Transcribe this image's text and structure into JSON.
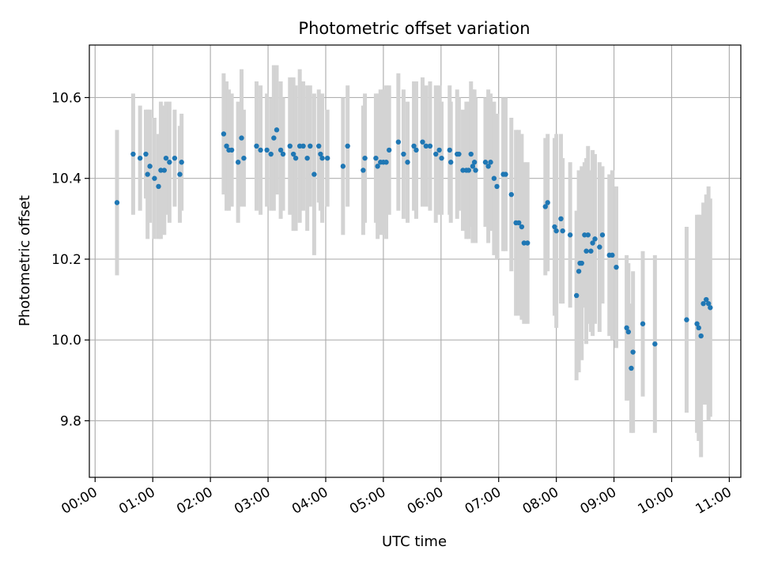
{
  "chart_data": {
    "type": "scatter",
    "title": "Photometric offset variation",
    "xlabel": "UTC time",
    "ylabel": "Photometric offset",
    "grid": true,
    "xlim_hours": [
      -0.1,
      11.2
    ],
    "ylim": [
      9.66,
      10.73
    ],
    "x_ticks": [
      {
        "v": 0,
        "label": "00:00"
      },
      {
        "v": 1,
        "label": "01:00"
      },
      {
        "v": 2,
        "label": "02:00"
      },
      {
        "v": 3,
        "label": "03:00"
      },
      {
        "v": 4,
        "label": "04:00"
      },
      {
        "v": 5,
        "label": "05:00"
      },
      {
        "v": 6,
        "label": "06:00"
      },
      {
        "v": 7,
        "label": "07:00"
      },
      {
        "v": 8,
        "label": "08:00"
      },
      {
        "v": 9,
        "label": "09:00"
      },
      {
        "v": 10,
        "label": "10:00"
      },
      {
        "v": 11,
        "label": "11:00"
      }
    ],
    "y_ticks": [
      {
        "v": 9.8,
        "label": "9.8"
      },
      {
        "v": 10.0,
        "label": "10.0"
      },
      {
        "v": 10.2,
        "label": "10.2"
      },
      {
        "v": 10.4,
        "label": "10.4"
      },
      {
        "v": 10.6,
        "label": "10.6"
      }
    ],
    "series": [
      {
        "name": "offset",
        "points": [
          [
            0.38,
            10.34,
            0.18
          ],
          [
            0.66,
            10.46,
            0.15
          ],
          [
            0.78,
            10.45,
            0.13
          ],
          [
            0.88,
            10.46,
            0.11
          ],
          [
            0.91,
            10.41,
            0.16
          ],
          [
            0.95,
            10.43,
            0.14
          ],
          [
            1.03,
            10.4,
            0.15
          ],
          [
            1.1,
            10.38,
            0.13
          ],
          [
            1.14,
            10.42,
            0.17
          ],
          [
            1.2,
            10.42,
            0.16
          ],
          [
            1.23,
            10.45,
            0.14
          ],
          [
            1.29,
            10.44,
            0.15
          ],
          [
            1.38,
            10.45,
            0.12
          ],
          [
            1.47,
            10.41,
            0.12
          ],
          [
            1.5,
            10.44,
            0.12
          ],
          [
            2.23,
            10.51,
            0.15
          ],
          [
            2.28,
            10.48,
            0.16
          ],
          [
            2.32,
            10.47,
            0.15
          ],
          [
            2.37,
            10.47,
            0.14
          ],
          [
            2.48,
            10.44,
            0.15
          ],
          [
            2.54,
            10.5,
            0.17
          ],
          [
            2.58,
            10.45,
            0.12
          ],
          [
            2.8,
            10.48,
            0.16
          ],
          [
            2.87,
            10.47,
            0.16
          ],
          [
            2.98,
            10.47,
            0.14
          ],
          [
            3.05,
            10.46,
            0.14
          ],
          [
            3.1,
            10.5,
            0.18
          ],
          [
            3.15,
            10.52,
            0.16
          ],
          [
            3.22,
            10.47,
            0.17
          ],
          [
            3.26,
            10.46,
            0.14
          ],
          [
            3.38,
            10.48,
            0.17
          ],
          [
            3.44,
            10.46,
            0.19
          ],
          [
            3.48,
            10.45,
            0.18
          ],
          [
            3.55,
            10.48,
            0.19
          ],
          [
            3.61,
            10.48,
            0.16
          ],
          [
            3.68,
            10.45,
            0.18
          ],
          [
            3.73,
            10.48,
            0.15
          ],
          [
            3.8,
            10.41,
            0.2
          ],
          [
            3.88,
            10.48,
            0.14
          ],
          [
            3.91,
            10.46,
            0.14
          ],
          [
            3.94,
            10.45,
            0.16
          ],
          [
            4.03,
            10.45,
            0.12
          ],
          [
            4.3,
            10.43,
            0.17
          ],
          [
            4.38,
            10.48,
            0.15
          ],
          [
            4.65,
            10.42,
            0.16
          ],
          [
            4.68,
            10.45,
            0.16
          ],
          [
            4.87,
            10.45,
            0.16
          ],
          [
            4.9,
            10.43,
            0.18
          ],
          [
            4.95,
            10.44,
            0.18
          ],
          [
            5.0,
            10.44,
            0.18
          ],
          [
            5.05,
            10.44,
            0.19
          ],
          [
            5.1,
            10.47,
            0.16
          ],
          [
            5.26,
            10.49,
            0.17
          ],
          [
            5.35,
            10.46,
            0.16
          ],
          [
            5.42,
            10.44,
            0.15
          ],
          [
            5.53,
            10.48,
            0.16
          ],
          [
            5.57,
            10.47,
            0.17
          ],
          [
            5.68,
            10.49,
            0.16
          ],
          [
            5.74,
            10.48,
            0.15
          ],
          [
            5.81,
            10.48,
            0.16
          ],
          [
            5.91,
            10.46,
            0.17
          ],
          [
            5.97,
            10.47,
            0.16
          ],
          [
            6.01,
            10.45,
            0.14
          ],
          [
            6.15,
            10.47,
            0.16
          ],
          [
            6.17,
            10.44,
            0.15
          ],
          [
            6.28,
            10.46,
            0.16
          ],
          [
            6.31,
            10.46,
            0.14
          ],
          [
            6.38,
            10.42,
            0.15
          ],
          [
            6.44,
            10.42,
            0.17
          ],
          [
            6.48,
            10.42,
            0.17
          ],
          [
            6.52,
            10.46,
            0.18
          ],
          [
            6.55,
            10.43,
            0.19
          ],
          [
            6.58,
            10.44,
            0.18
          ],
          [
            6.6,
            10.42,
            0.18
          ],
          [
            6.77,
            10.44,
            0.16
          ],
          [
            6.82,
            10.43,
            0.19
          ],
          [
            6.86,
            10.44,
            0.17
          ],
          [
            6.92,
            10.4,
            0.19
          ],
          [
            6.97,
            10.38,
            0.18
          ],
          [
            7.08,
            10.41,
            0.19
          ],
          [
            7.12,
            10.41,
            0.19
          ],
          [
            7.22,
            10.36,
            0.19
          ],
          [
            7.3,
            10.29,
            0.23
          ],
          [
            7.35,
            10.29,
            0.23
          ],
          [
            7.4,
            10.28,
            0.23
          ],
          [
            7.44,
            10.24,
            0.2
          ],
          [
            7.5,
            10.24,
            0.2
          ],
          [
            7.81,
            10.33,
            0.17
          ],
          [
            7.85,
            10.34,
            0.17
          ],
          [
            7.97,
            10.28,
            0.22
          ],
          [
            8.0,
            10.27,
            0.24
          ],
          [
            8.08,
            10.3,
            0.21
          ],
          [
            8.11,
            10.27,
            0.18
          ],
          [
            8.24,
            10.26,
            0.18
          ],
          [
            8.35,
            10.11,
            0.21
          ],
          [
            8.39,
            10.17,
            0.25
          ],
          [
            8.41,
            10.19,
            0.23
          ],
          [
            8.44,
            10.19,
            0.24
          ],
          [
            8.49,
            10.26,
            0.18
          ],
          [
            8.52,
            10.22,
            0.23
          ],
          [
            8.55,
            10.26,
            0.22
          ],
          [
            8.6,
            10.22,
            0.2
          ],
          [
            8.63,
            10.24,
            0.23
          ],
          [
            8.67,
            10.25,
            0.21
          ],
          [
            8.75,
            10.23,
            0.21
          ],
          [
            8.8,
            10.26,
            0.17
          ],
          [
            8.92,
            10.21,
            0.2
          ],
          [
            8.97,
            10.21,
            0.21
          ],
          [
            9.04,
            10.18,
            0.2
          ],
          [
            9.22,
            10.03,
            0.18
          ],
          [
            9.25,
            10.02,
            0.17
          ],
          [
            9.3,
            9.93,
            0.16
          ],
          [
            9.33,
            9.97,
            0.2
          ],
          [
            9.5,
            10.04,
            0.18
          ],
          [
            9.71,
            9.99,
            0.22
          ],
          [
            10.26,
            10.05,
            0.23
          ],
          [
            10.44,
            10.04,
            0.27
          ],
          [
            10.47,
            10.03,
            0.28
          ],
          [
            10.51,
            10.01,
            0.3
          ],
          [
            10.55,
            10.09,
            0.25
          ],
          [
            10.6,
            10.1,
            0.26
          ],
          [
            10.64,
            10.09,
            0.29
          ],
          [
            10.67,
            10.08,
            0.27
          ]
        ]
      }
    ]
  }
}
